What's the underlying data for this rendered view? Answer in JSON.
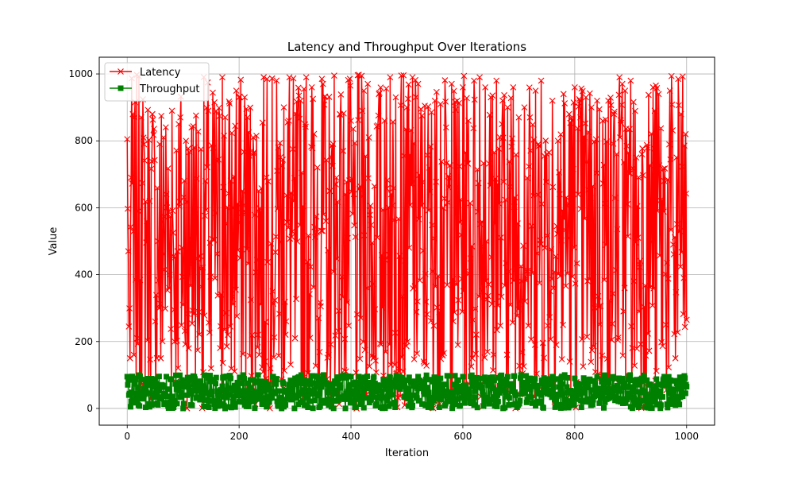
{
  "colors": {
    "latency": "#ff0000",
    "throughput": "#008000",
    "grid": "#b0b0b0",
    "axis": "#000000",
    "legend_border": "#cccccc"
  },
  "chart_data": {
    "type": "line",
    "title": "Latency and Throughput Over Iterations",
    "xlabel": "Iteration",
    "ylabel": "Value",
    "xlim": [
      -50,
      1050
    ],
    "ylim": [
      -50,
      1050
    ],
    "xticks": [
      0,
      200,
      400,
      600,
      800,
      1000
    ],
    "yticks": [
      0,
      200,
      400,
      600,
      800,
      1000
    ],
    "xtick_labels": [
      "0",
      "200",
      "400",
      "600",
      "800",
      "1000"
    ],
    "ytick_labels": [
      "0",
      "200",
      "400",
      "600",
      "800",
      "1000"
    ],
    "grid": true,
    "legend_position": "top-left",
    "x_range": [
      0,
      1000
    ],
    "series": [
      {
        "name": "Latency",
        "marker": "x",
        "color": "#ff0000",
        "value_range": [
          0,
          1000
        ],
        "sample_points": [
          {
            "x": 0,
            "y": 805
          },
          {
            "x": 2,
            "y": 470
          },
          {
            "x": 3,
            "y": 245
          },
          {
            "x": 5,
            "y": 150
          },
          {
            "x": 7,
            "y": 690
          },
          {
            "x": 10,
            "y": 880
          },
          {
            "x": 12,
            "y": 160
          },
          {
            "x": 15,
            "y": 385
          },
          {
            "x": 20,
            "y": 590
          },
          {
            "x": 25,
            "y": 870
          },
          {
            "x": 30,
            "y": 790
          },
          {
            "x": 35,
            "y": 560
          },
          {
            "x": 40,
            "y": 620
          },
          {
            "x": 45,
            "y": 880
          },
          {
            "x": 50,
            "y": 260
          },
          {
            "x": 55,
            "y": 500
          },
          {
            "x": 60,
            "y": 150
          },
          {
            "x": 65,
            "y": 810
          },
          {
            "x": 70,
            "y": 640
          },
          {
            "x": 75,
            "y": 360
          },
          {
            "x": 80,
            "y": 890
          },
          {
            "x": 85,
            "y": 200
          },
          {
            "x": 90,
            "y": 470
          },
          {
            "x": 95,
            "y": 870
          },
          {
            "x": 100,
            "y": 310
          },
          {
            "x": 105,
            "y": 800
          },
          {
            "x": 110,
            "y": 180
          },
          {
            "x": 115,
            "y": 840
          },
          {
            "x": 120,
            "y": 780
          },
          {
            "x": 130,
            "y": 420
          },
          {
            "x": 140,
            "y": 680
          },
          {
            "x": 145,
            "y": 890
          },
          {
            "x": 150,
            "y": 120
          },
          {
            "x": 160,
            "y": 740
          },
          {
            "x": 170,
            "y": 990
          },
          {
            "x": 175,
            "y": 870
          },
          {
            "x": 180,
            "y": 220
          },
          {
            "x": 190,
            "y": 600
          },
          {
            "x": 195,
            "y": 950
          },
          {
            "x": 200,
            "y": 930
          },
          {
            "x": 210,
            "y": 930
          },
          {
            "x": 215,
            "y": 870
          },
          {
            "x": 225,
            "y": 810
          },
          {
            "x": 235,
            "y": 650
          },
          {
            "x": 245,
            "y": 60
          },
          {
            "x": 250,
            "y": 985
          },
          {
            "x": 260,
            "y": 350
          },
          {
            "x": 270,
            "y": 780
          },
          {
            "x": 280,
            "y": 900
          },
          {
            "x": 290,
            "y": 990
          },
          {
            "x": 300,
            "y": 210
          },
          {
            "x": 310,
            "y": 920
          },
          {
            "x": 320,
            "y": 990
          },
          {
            "x": 330,
            "y": 960
          },
          {
            "x": 340,
            "y": 720
          },
          {
            "x": 350,
            "y": 970
          },
          {
            "x": 360,
            "y": 160
          },
          {
            "x": 370,
            "y": 995
          },
          {
            "x": 380,
            "y": 880
          },
          {
            "x": 390,
            "y": 640
          },
          {
            "x": 400,
            "y": 860
          },
          {
            "x": 410,
            "y": 0
          },
          {
            "x": 420,
            "y": 890
          },
          {
            "x": 430,
            "y": 970
          },
          {
            "x": 440,
            "y": 150
          },
          {
            "x": 450,
            "y": 940
          },
          {
            "x": 460,
            "y": 860
          },
          {
            "x": 470,
            "y": 990
          },
          {
            "x": 480,
            "y": 930
          },
          {
            "x": 490,
            "y": 995
          },
          {
            "x": 500,
            "y": 900
          },
          {
            "x": 510,
            "y": 990
          },
          {
            "x": 520,
            "y": 970
          },
          {
            "x": 530,
            "y": 140
          },
          {
            "x": 540,
            "y": 720
          },
          {
            "x": 550,
            "y": 920
          },
          {
            "x": 560,
            "y": 910
          },
          {
            "x": 570,
            "y": 840
          },
          {
            "x": 580,
            "y": 970
          },
          {
            "x": 590,
            "y": 920
          },
          {
            "x": 600,
            "y": 960
          },
          {
            "x": 610,
            "y": 860
          },
          {
            "x": 620,
            "y": 980
          },
          {
            "x": 630,
            "y": 990
          },
          {
            "x": 640,
            "y": 960
          },
          {
            "x": 650,
            "y": 930
          },
          {
            "x": 660,
            "y": 980
          },
          {
            "x": 670,
            "y": 850
          },
          {
            "x": 680,
            "y": 900
          },
          {
            "x": 690,
            "y": 960
          },
          {
            "x": 700,
            "y": 870
          },
          {
            "x": 710,
            "y": 900
          },
          {
            "x": 720,
            "y": 870
          },
          {
            "x": 730,
            "y": 950
          },
          {
            "x": 740,
            "y": 980
          },
          {
            "x": 750,
            "y": 760
          },
          {
            "x": 760,
            "y": 920
          },
          {
            "x": 770,
            "y": 800
          },
          {
            "x": 780,
            "y": 940
          },
          {
            "x": 790,
            "y": 880
          },
          {
            "x": 800,
            "y": 960
          },
          {
            "x": 810,
            "y": 870
          },
          {
            "x": 820,
            "y": 930
          },
          {
            "x": 830,
            "y": 900
          },
          {
            "x": 840,
            "y": 920
          },
          {
            "x": 850,
            "y": 860
          },
          {
            "x": 860,
            "y": 920
          },
          {
            "x": 870,
            "y": 880
          },
          {
            "x": 880,
            "y": 990
          },
          {
            "x": 885,
            "y": 970
          },
          {
            "x": 890,
            "y": 950
          },
          {
            "x": 900,
            "y": 980
          },
          {
            "x": 910,
            "y": 750
          },
          {
            "x": 920,
            "y": 760
          },
          {
            "x": 930,
            "y": 780
          },
          {
            "x": 940,
            "y": 960
          },
          {
            "x": 950,
            "y": 940
          },
          {
            "x": 960,
            "y": 680
          },
          {
            "x": 970,
            "y": 950
          },
          {
            "x": 980,
            "y": 150
          },
          {
            "x": 985,
            "y": 985
          },
          {
            "x": 990,
            "y": 880
          },
          {
            "x": 995,
            "y": 390
          },
          {
            "x": 998,
            "y": 820
          },
          {
            "x": 1000,
            "y": 265
          }
        ]
      },
      {
        "name": "Throughput",
        "marker": "s",
        "color": "#008000",
        "value_range": [
          0,
          100
        ],
        "sample_points": [
          {
            "x": 0,
            "y": 95
          },
          {
            "x": 3,
            "y": 40
          },
          {
            "x": 6,
            "y": 5
          },
          {
            "x": 10,
            "y": 85
          },
          {
            "x": 15,
            "y": 90
          },
          {
            "x": 20,
            "y": 10
          },
          {
            "x": 30,
            "y": 60
          },
          {
            "x": 40,
            "y": 5
          },
          {
            "x": 50,
            "y": 80
          },
          {
            "x": 60,
            "y": 30
          },
          {
            "x": 70,
            "y": 95
          },
          {
            "x": 80,
            "y": 20
          },
          {
            "x": 90,
            "y": 75
          },
          {
            "x": 100,
            "y": 0
          },
          {
            "x": 120,
            "y": 95
          },
          {
            "x": 140,
            "y": 50
          },
          {
            "x": 160,
            "y": 10
          },
          {
            "x": 180,
            "y": 95
          },
          {
            "x": 200,
            "y": 20
          },
          {
            "x": 220,
            "y": 85
          },
          {
            "x": 240,
            "y": 30
          },
          {
            "x": 260,
            "y": 95
          },
          {
            "x": 280,
            "y": 5
          },
          {
            "x": 300,
            "y": 90
          },
          {
            "x": 320,
            "y": 40
          },
          {
            "x": 340,
            "y": 95
          },
          {
            "x": 360,
            "y": 10
          },
          {
            "x": 380,
            "y": 70
          },
          {
            "x": 400,
            "y": 95
          },
          {
            "x": 420,
            "y": 20
          },
          {
            "x": 440,
            "y": 90
          },
          {
            "x": 460,
            "y": 5
          },
          {
            "x": 480,
            "y": 85
          },
          {
            "x": 500,
            "y": 40
          },
          {
            "x": 520,
            "y": 95
          },
          {
            "x": 540,
            "y": 15
          },
          {
            "x": 560,
            "y": 90
          },
          {
            "x": 580,
            "y": 30
          },
          {
            "x": 600,
            "y": 95
          },
          {
            "x": 620,
            "y": 10
          },
          {
            "x": 640,
            "y": 85
          },
          {
            "x": 660,
            "y": 25
          },
          {
            "x": 680,
            "y": 95
          },
          {
            "x": 700,
            "y": 15
          },
          {
            "x": 720,
            "y": 90
          },
          {
            "x": 740,
            "y": 40
          },
          {
            "x": 760,
            "y": 95
          },
          {
            "x": 780,
            "y": 10
          },
          {
            "x": 800,
            "y": 90
          },
          {
            "x": 820,
            "y": 20
          },
          {
            "x": 840,
            "y": 95
          },
          {
            "x": 860,
            "y": 30
          },
          {
            "x": 880,
            "y": 85
          },
          {
            "x": 900,
            "y": 5
          },
          {
            "x": 920,
            "y": 90
          },
          {
            "x": 940,
            "y": 25
          },
          {
            "x": 960,
            "y": 95
          },
          {
            "x": 980,
            "y": 10
          },
          {
            "x": 990,
            "y": 85
          },
          {
            "x": 1000,
            "y": 65
          }
        ]
      }
    ]
  }
}
